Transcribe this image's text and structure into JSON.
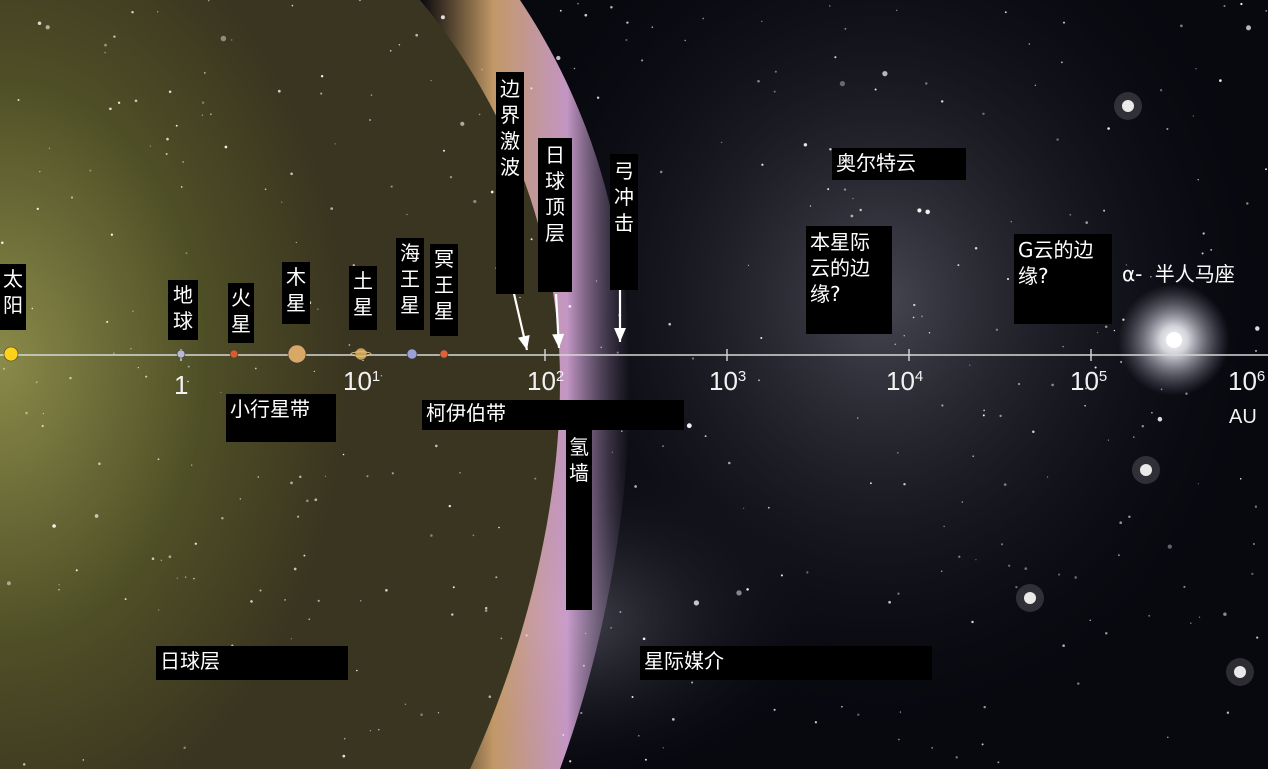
{
  "axis": {
    "ticks": [
      {
        "base": "1",
        "exp": ""
      },
      {
        "base": "10",
        "exp": "1"
      },
      {
        "base": "10",
        "exp": "2"
      },
      {
        "base": "10",
        "exp": "3"
      },
      {
        "base": "10",
        "exp": "4"
      },
      {
        "base": "10",
        "exp": "5"
      },
      {
        "base": "10",
        "exp": "6"
      }
    ],
    "unit": "AU",
    "scale": "log"
  },
  "planets": [
    {
      "label": "太阳",
      "icon": "sun-icon",
      "color": "#ffd21a"
    },
    {
      "label": "地球",
      "icon": "earth-icon",
      "color": "#b9b9d6"
    },
    {
      "label": "火星",
      "icon": "mars-icon",
      "color": "#d65c2e"
    },
    {
      "label": "木星",
      "icon": "jupiter-icon",
      "color": "#d9a866"
    },
    {
      "label": "土星",
      "icon": "saturn-icon",
      "color": "#caa055"
    },
    {
      "label": "海王星",
      "icon": "neptune-icon",
      "color": "#9aa0d8"
    },
    {
      "label": "冥王星",
      "icon": "pluto-icon",
      "color": "#e0603a"
    }
  ],
  "boundaries": {
    "termination_shock": "边界激波",
    "heliopause": "日球顶层",
    "bow_shock": "弓冲击",
    "hydrogen_wall": "氢墙",
    "local_cloud_edge": "本星际云的边缘?",
    "g_cloud_edge": "G云的边缘?",
    "oort_cloud": "奥尔特云"
  },
  "regions": {
    "asteroid_belt": "小行星带",
    "kuiper_belt": "柯伊伯带",
    "heliosphere": "日球层",
    "interstellar_medium": "星际媒介"
  },
  "star": {
    "prefix": "α-",
    "name": "半人马座"
  },
  "colors": {
    "heliosphere": "#5a5a2a",
    "heliopause_band": "#d8a8d8",
    "label_bg": "#000000",
    "label_text": "#ffffff"
  }
}
